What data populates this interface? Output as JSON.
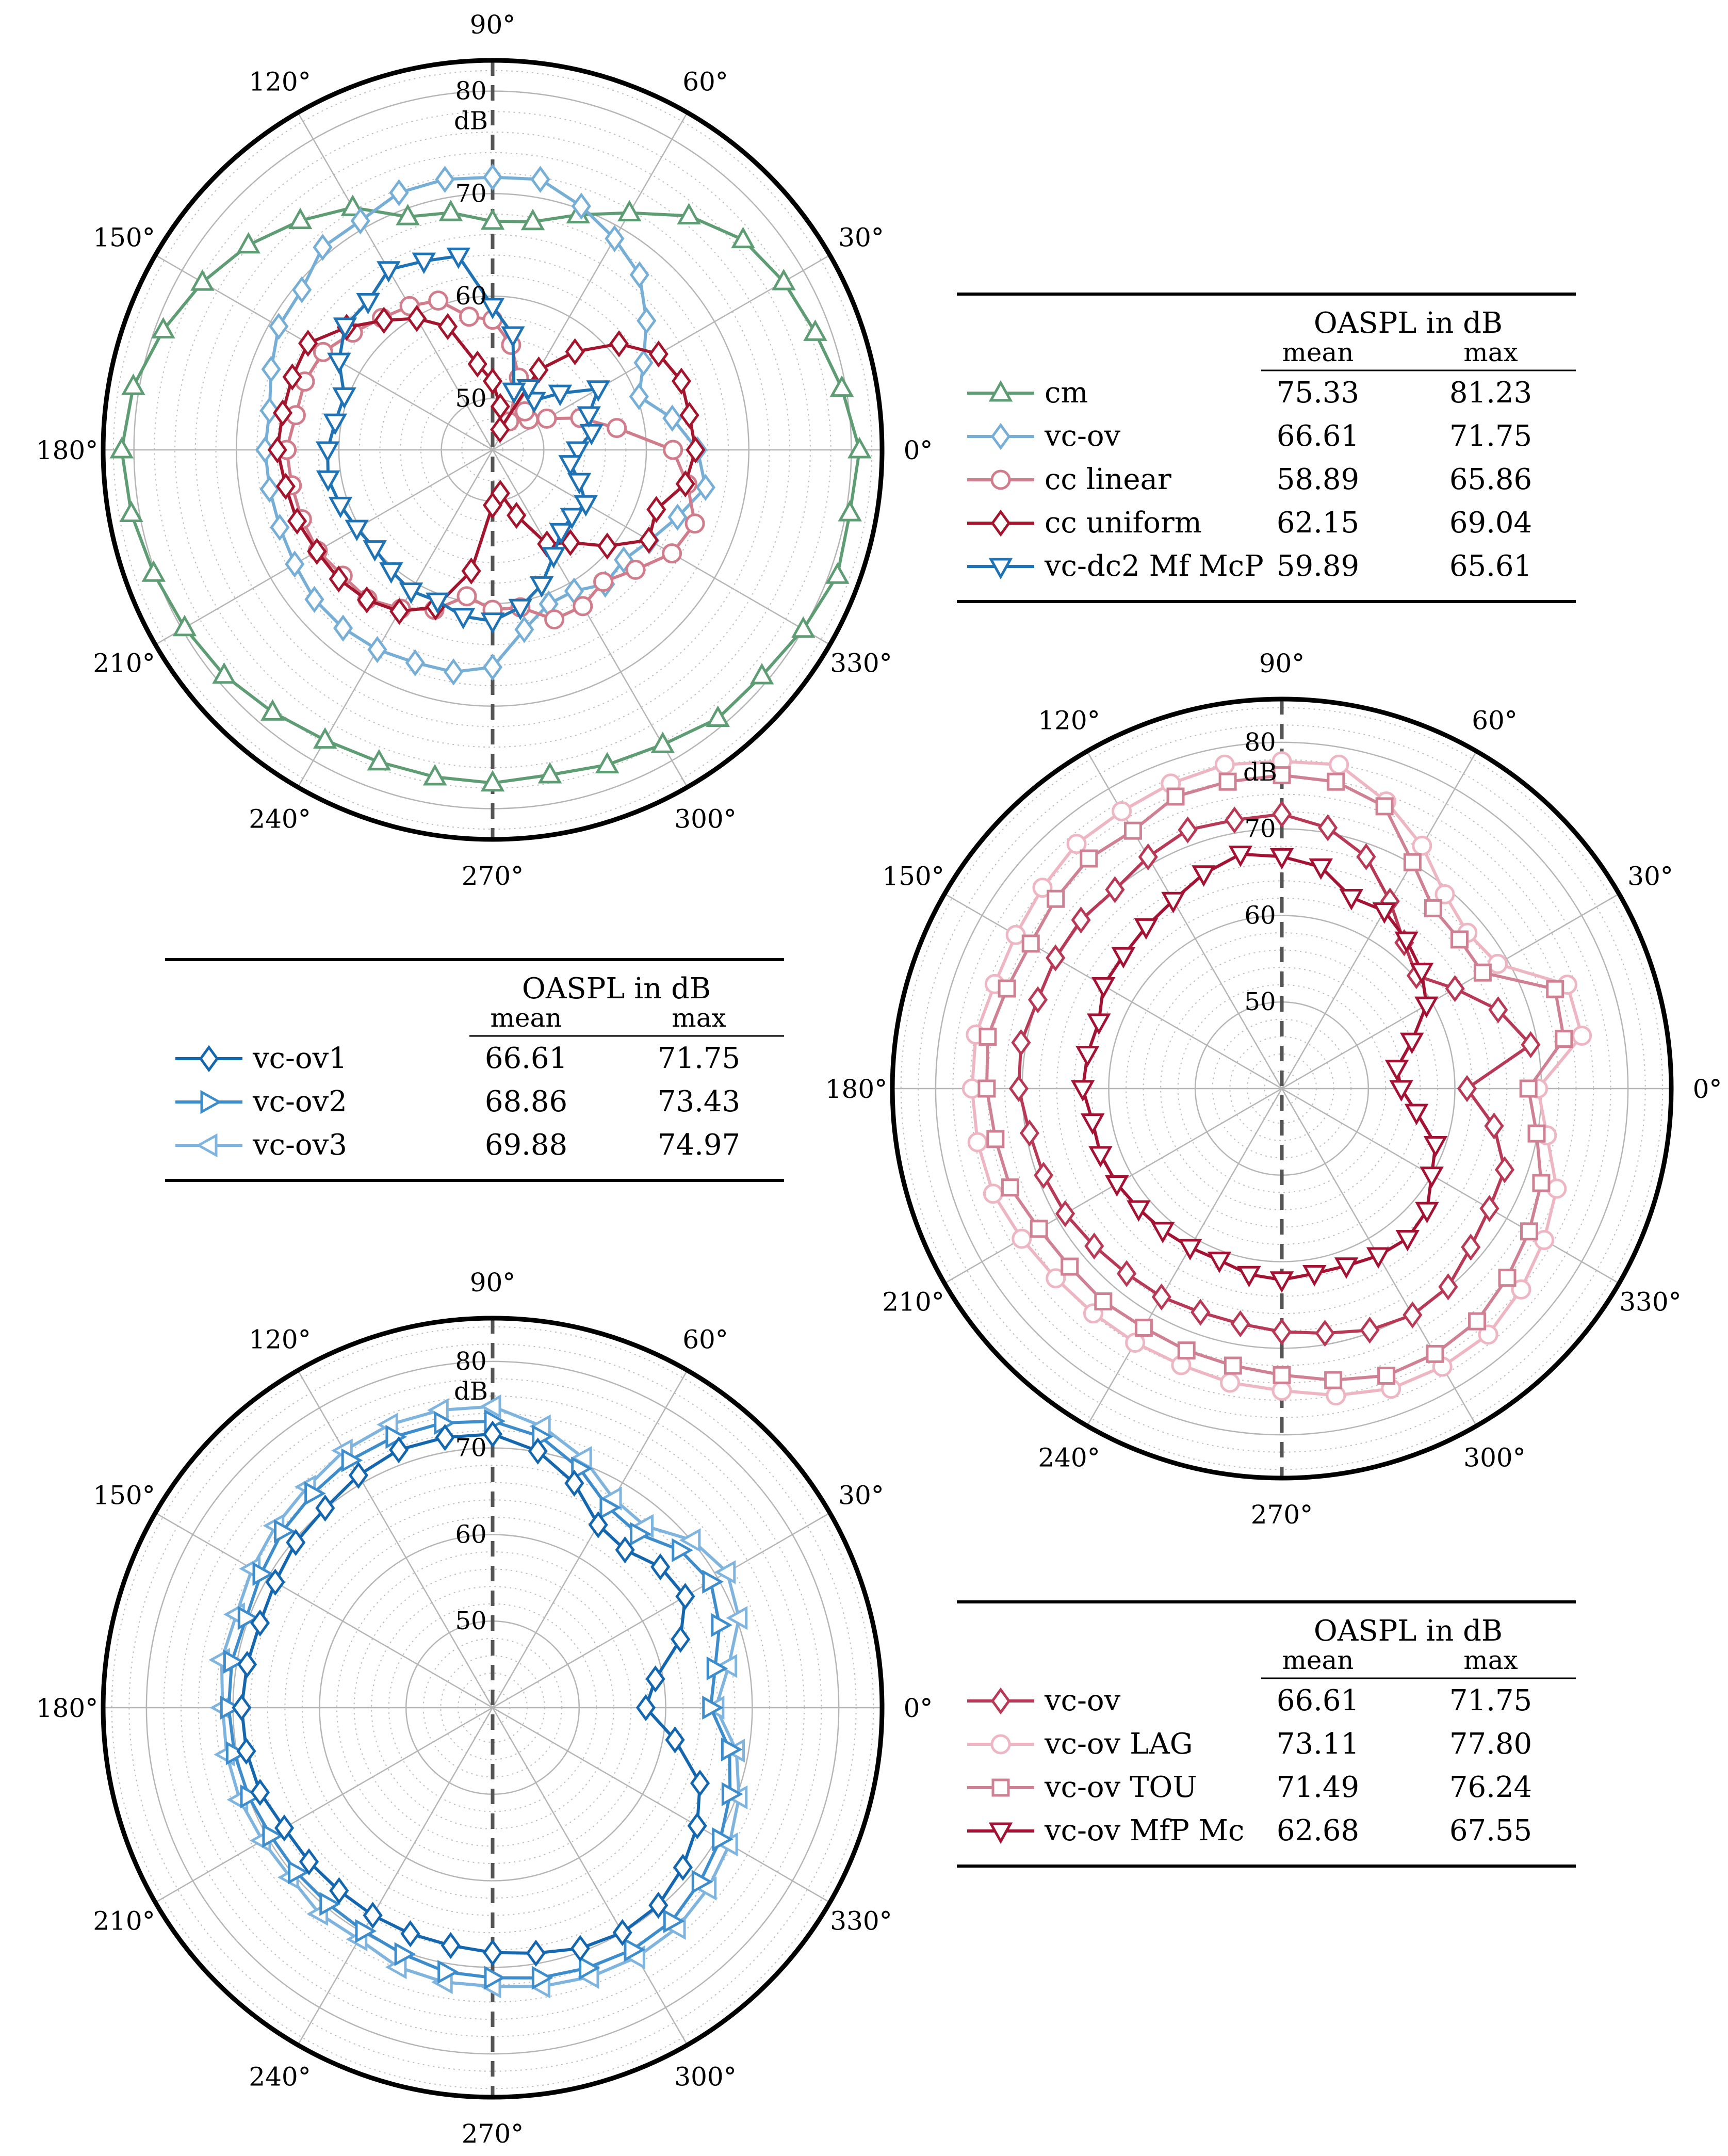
{
  "chart_data": [
    {
      "type": "polar-line",
      "id": "top-left",
      "r_range": [
        45,
        83
      ],
      "r_ticks": [
        50,
        60,
        70,
        80
      ],
      "r_unit": "dB",
      "angle_ticks": [
        "0°",
        "30°",
        "60°",
        "90°",
        "120°",
        "150°",
        "180°",
        "210°",
        "240°",
        "270°",
        "300°",
        "330°"
      ],
      "legend": {
        "header": "OASPL in dB",
        "col_mean": "mean",
        "col_max": "max"
      },
      "series": [
        {
          "name": "cm",
          "color": "#5e9c73",
          "marker": "triangle-up",
          "mean": "75.33",
          "max": "81.23",
          "values": [
            80.8,
            79.6,
            78.5,
            77.8,
            76.9,
            74.8,
            71.7,
            69.4,
            67.6,
            67.3,
            68.5,
            69.2,
            72.3,
            74.2,
            76.1,
            77.7,
            79.2,
            80.6,
            81.2,
            80.8,
            80.2,
            79.7,
            79.2,
            78.4,
            77.7,
            77.4,
            77.4,
            77.5,
            77.2,
            77.7,
            78.2,
            79.2,
            79.3,
            80.0,
            80.8,
            80.4
          ]
        },
        {
          "name": "vc-ov",
          "color": "#76aed6",
          "marker": "diamond",
          "mean": "66.61",
          "max": "71.75",
          "values": [
            65.0,
            62.8,
            60.2,
            62.0,
            64.6,
            67.3,
            68.8,
            70.3,
            71.8,
            71.6,
            71.8,
            71.7,
            70.8,
            70.8,
            69.3,
            69.1,
            68.0,
            67.1,
            67.2,
            67.1,
            67.1,
            67.3,
            67.7,
            67.7,
            67.5,
            67.1,
            67.0,
            66.2,
            62.8,
            61.0,
            60.9,
            62.1,
            61.7,
            62.7,
            64.2,
            66.1
          ]
        },
        {
          "name": "cc linear",
          "color": "#d17c8b",
          "marker": "circle",
          "mean": "58.89",
          "max": "65.86",
          "values": [
            62.6,
            57.3,
            54.1,
            51.1,
            49.6,
            49.9,
            48.2,
            52.5,
            55.4,
            57.7,
            58.2,
            60.5,
            61.2,
            61.8,
            62.8,
            64.1,
            64.5,
            64.5,
            65.1,
            64.9,
            64.8,
            64.7,
            64.1,
            64.0,
            62.9,
            61.6,
            59.5,
            60.6,
            60.6,
            62.6,
            62.6,
            61.8,
            63.2,
            65.2,
            66.0,
            64.3
          ]
        },
        {
          "name": "cc uniform",
          "color": "#a3142d",
          "marker": "diamond",
          "mean": "62.15",
          "max": "69.04",
          "values": [
            64.8,
            64.5,
            64.6,
            63.7,
            61.1,
            57.5,
            54.0,
            47.1,
            49.3,
            51.7,
            53.5,
            57.8,
            59.8,
            61.5,
            63.6,
            65.8,
            65.8,
            65.8,
            66.0,
            65.5,
            65.3,
            64.8,
            64.6,
            64.1,
            63.2,
            61.3,
            57.0,
            50.4,
            49.3,
            51.8,
            55.6,
            56.8,
            59.6,
            62.6,
            62.0,
            64.1
          ]
        },
        {
          "name": "vc-dc2 Mf McP",
          "color": "#1f73b4",
          "marker": "triangle-down",
          "mean": "59.89",
          "max": "65.61",
          "values": [
            53.3,
            54.8,
            55.0,
            56.9,
            53.6,
            51.3,
            52.0,
            51.1,
            56.4,
            59.0,
            64.2,
            64.6,
            65.3,
            63.9,
            63.8,
            62.3,
            60.4,
            60.6,
            61.1,
            61.3,
            60.8,
            60.3,
            60.0,
            60.4,
            60.9,
            60.7,
            61.5,
            61.7,
            60.6,
            59.0,
            56.9,
            55.4,
            55.1,
            55.5,
            54.0,
            52.7
          ]
        }
      ]
    },
    {
      "type": "polar-line",
      "id": "right",
      "r_range": [
        40,
        85
      ],
      "r_ticks": [
        50,
        60,
        70,
        80
      ],
      "r_unit": "dB",
      "angle_ticks": [
        "0°",
        "30°",
        "60°",
        "90°",
        "120°",
        "150°",
        "180°",
        "210°",
        "240°",
        "270°",
        "300°",
        "330°"
      ],
      "legend": {
        "header": "OASPL in dB",
        "col_mean": "mean",
        "col_max": "max"
      },
      "series": [
        {
          "name": "vc-ov LAG",
          "color": "#eeb6c3",
          "marker": "circle",
          "mean": "73.11",
          "max": "77.80",
          "values": [
            69.6,
            75.2,
            75.1,
            68.8,
            68.0,
            69.3,
            72.4,
            75.3,
            78.0,
            77.8,
            78.0,
            77.5,
            77.0,
            76.9,
            76.1,
            75.5,
            75.3,
            75.9,
            75.8,
            75.7,
            75.5,
            74.7,
            74.1,
            73.9,
            73.9,
            74.0,
            74.5,
            74.9,
            76.0,
            76.9,
            77.1,
            77.1,
            76.1,
            75.0,
            73.8,
            71.1
          ]
        },
        {
          "name": "vc-ov TOU",
          "color": "#d08093",
          "marker": "square",
          "mean": "71.49",
          "max": "76.24",
          "values": [
            68.5,
            73.1,
            73.6,
            66.8,
            66.8,
            67.2,
            70.2,
            74.7,
            76.0,
            76.2,
            76.0,
            75.9,
            74.4,
            74.7,
            74.1,
            73.5,
            73.8,
            74.5,
            74.1,
            73.6,
            73.4,
            72.4,
            72.0,
            72.1,
            71.9,
            72.2,
            72.5,
            73.1,
            74.2,
            75.3,
            75.4,
            75.1,
            74.0,
            73.0,
            71.9,
            69.9
          ]
        },
        {
          "name": "vc-ov",
          "color": "#b73955",
          "marker": "diamond",
          "mean": "66.61",
          "max": "71.75",
          "values": [
            61.4,
            69.2,
            66.6,
            63.1,
            60.3,
            62.0,
            65.0,
            68.5,
            70.6,
            71.7,
            71.5,
            71.8,
            70.9,
            70.0,
            70.3,
            70.2,
            70.0,
            70.6,
            70.4,
            69.6,
            69.3,
            68.9,
            68.3,
            67.9,
            67.8,
            67.5,
            67.6,
            68.1,
            68.7,
            69.7,
            70.2,
            69.9,
            68.5,
            67.7,
            67.4,
            64.9
          ]
        },
        {
          "name": "vc-ov MfP Mc",
          "color": "#a31232",
          "marker": "triangle-down",
          "mean": "62.68",
          "max": "67.55",
          "values": [
            53.8,
            53.5,
            56.0,
            59.3,
            61.1,
            62.4,
            63.7,
            63.5,
            66.0,
            66.8,
            67.5,
            66.4,
            65.1,
            64.4,
            63.9,
            63.8,
            62.5,
            62.8,
            63.0,
            62.2,
            62.3,
            62.0,
            61.6,
            61.4,
            61.2,
            61.1,
            61.8,
            62.1,
            61.7,
            61.8,
            62.3,
            62.6,
            61.9,
            60.0,
            58.9,
            55.8
          ]
        }
      ]
    },
    {
      "type": "polar-line",
      "id": "bottom-left",
      "r_range": [
        40,
        85
      ],
      "r_ticks": [
        50,
        60,
        70,
        80
      ],
      "r_unit": "dB",
      "angle_ticks": [
        "0°",
        "30°",
        "60°",
        "90°",
        "120°",
        "150°",
        "180°",
        "210°",
        "240°",
        "270°",
        "300°",
        "330°"
      ],
      "legend": {
        "header": "OASPL in dB",
        "col_mean": "mean",
        "col_max": "max"
      },
      "series": [
        {
          "name": "vc-ov3",
          "color": "#7eb4de",
          "marker": "triangle-left",
          "mean": "69.88",
          "max": "74.97",
          "values": [
            65.8,
            67.7,
            70.3,
            71.3,
            70.1,
            67.4,
            67.9,
            70.7,
            73.0,
            74.8,
            74.9,
            74.8,
            74.3,
            73.3,
            72.7,
            72.1,
            71.5,
            71.8,
            71.2,
            71.2,
            71.1,
            70.7,
            70.5,
            71.1,
            70.9,
            71.9,
            72.2,
            72.2,
            72.7,
            73.1,
            73.3,
            73.2,
            72.5,
            71.6,
            70.3,
            68.6
          ]
        },
        {
          "name": "vc-ov2",
          "color": "#3d8ccb",
          "marker": "triangle-right",
          "mean": "68.86",
          "max": "73.43",
          "values": [
            65.2,
            66.1,
            67.9,
            69.1,
            68.3,
            66.2,
            66.7,
            69.4,
            71.8,
            73.1,
            73.4,
            73.3,
            73.0,
            72.3,
            71.7,
            70.9,
            70.3,
            70.6,
            70.5,
            70.3,
            70.0,
            69.6,
            69.6,
            69.6,
            69.8,
            70.3,
            71.0,
            71.2,
            71.7,
            72.0,
            72.3,
            72.2,
            71.3,
            70.4,
            69.2,
            67.8
          ]
        },
        {
          "name": "vc-ov1",
          "color": "#1466ae",
          "marker": "diamond",
          "mean": "66.61",
          "max": "71.75",
          "values": [
            57.7,
            59.1,
            63.1,
            65.7,
            65.3,
            63.8,
            64.4,
            67.6,
            70.1,
            71.6,
            71.7,
            71.7,
            71.0,
            70.1,
            69.7,
            69.0,
            68.6,
            68.8,
            69.0,
            68.9,
            68.6,
            67.8,
            67.7,
            67.6,
            67.7,
            67.8,
            67.9,
            68.3,
            68.8,
            69.6,
            70.0,
            69.8,
            68.7,
            67.3,
            65.5,
            61.4
          ]
        }
      ]
    }
  ]
}
